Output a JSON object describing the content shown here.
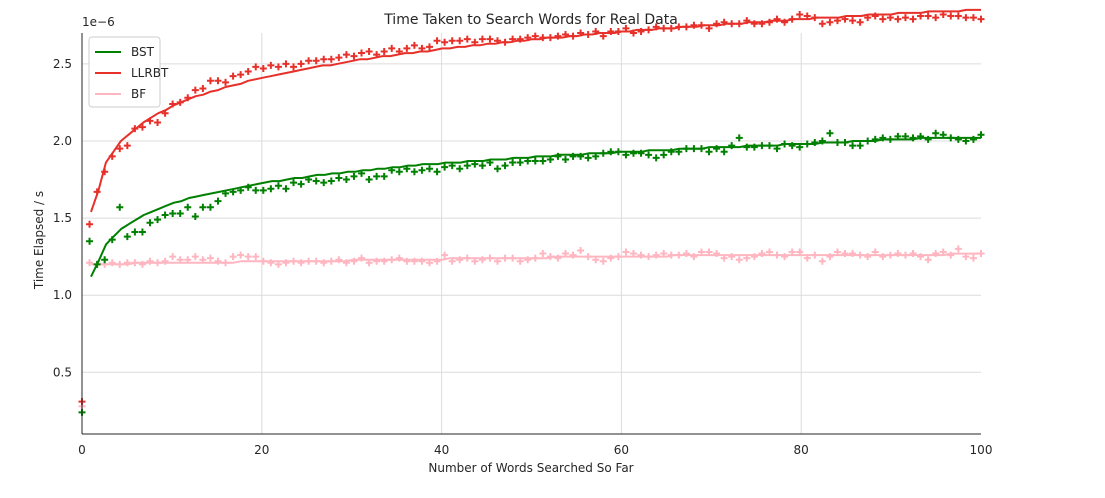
{
  "chart_data": {
    "type": "scatter",
    "title": "Time Taken to Search Words for Real Data",
    "xlabel": "Number of Words Searched So Far",
    "ylabel": "Time Elapsed / s",
    "y_multiplier": "1e−6",
    "xlim": [
      0,
      100
    ],
    "ylim": [
      0.1,
      2.7
    ],
    "x_ticks": [
      0,
      20,
      40,
      60,
      80,
      100
    ],
    "x_tick_labels": [
      "0",
      "20",
      "40",
      "60",
      "80",
      "100"
    ],
    "y_ticks": [
      0.5,
      1.0,
      1.5,
      2.0,
      2.5
    ],
    "y_tick_labels": [
      "0.5",
      "1.0",
      "1.5",
      "2.0",
      "2.5"
    ],
    "grid": true,
    "legend_position": "top-left",
    "series": [
      {
        "name": "BST",
        "color": "#008000",
        "markers": [
          0.24,
          1.35,
          1.2,
          1.23,
          1.36,
          1.57,
          1.38,
          1.41,
          1.41,
          1.47,
          1.49,
          1.52,
          1.53,
          1.53,
          1.57,
          1.51,
          1.57,
          1.57,
          1.61,
          1.66,
          1.67,
          1.68,
          1.7,
          1.68,
          1.68,
          1.69,
          1.71,
          1.69,
          1.73,
          1.72,
          1.75,
          1.74,
          1.73,
          1.74,
          1.76,
          1.75,
          1.77,
          1.79,
          1.75,
          1.77,
          1.77,
          1.81,
          1.8,
          1.82,
          1.8,
          1.81,
          1.82,
          1.8,
          1.83,
          1.84,
          1.82,
          1.84,
          1.85,
          1.84,
          1.86,
          1.82,
          1.84,
          1.86,
          1.86,
          1.87,
          1.87,
          1.87,
          1.88,
          1.9,
          1.88,
          1.9,
          1.9,
          1.89,
          1.9,
          1.92,
          1.93,
          1.93,
          1.91,
          1.92,
          1.92,
          1.91,
          1.89,
          1.91,
          1.93,
          1.93,
          1.95,
          1.95,
          1.95,
          1.93,
          1.95,
          1.93,
          1.97,
          2.02,
          1.96,
          1.96,
          1.97,
          1.97,
          1.95,
          1.98,
          1.97,
          1.96,
          1.98,
          1.99,
          2.0,
          2.05,
          1.99,
          1.99,
          1.97,
          1.97,
          2.0,
          2.01,
          2.02,
          2.01,
          2.03,
          2.03,
          2.02,
          2.03,
          2.01,
          2.05,
          2.04,
          2.02,
          2.01,
          2.0,
          2.01,
          2.04
        ],
        "fit": [
          1.12,
          1.22,
          1.33,
          1.38,
          1.43,
          1.46,
          1.49,
          1.52,
          1.54,
          1.56,
          1.58,
          1.6,
          1.61,
          1.63,
          1.64,
          1.65,
          1.66,
          1.67,
          1.68,
          1.69,
          1.7,
          1.71,
          1.72,
          1.73,
          1.74,
          1.74,
          1.75,
          1.76,
          1.76,
          1.77,
          1.78,
          1.78,
          1.79,
          1.79,
          1.8,
          1.8,
          1.81,
          1.81,
          1.82,
          1.82,
          1.83,
          1.83,
          1.84,
          1.84,
          1.85,
          1.85,
          1.85,
          1.86,
          1.86,
          1.86,
          1.87,
          1.87,
          1.87,
          1.88,
          1.88,
          1.88,
          1.89,
          1.89,
          1.89,
          1.9,
          1.9,
          1.9,
          1.91,
          1.91,
          1.91,
          1.91,
          1.92,
          1.92,
          1.92,
          1.92,
          1.93,
          1.93,
          1.93,
          1.93,
          1.94,
          1.94,
          1.94,
          1.94,
          1.95,
          1.95,
          1.95,
          1.95,
          1.96,
          1.96,
          1.96,
          1.96,
          1.96,
          1.97,
          1.97,
          1.97,
          1.97,
          1.97,
          1.98,
          1.98,
          1.98,
          1.98,
          1.98,
          1.99,
          1.99,
          1.99,
          1.99,
          2.0,
          2.0,
          2.0,
          2.0,
          2.01,
          2.01,
          2.01,
          2.01,
          2.01,
          2.02,
          2.02,
          2.02,
          2.02,
          2.02,
          2.02,
          2.02,
          2.02,
          2.02
        ]
      },
      {
        "name": "LLRBT",
        "color": "#e8302a",
        "markers": [
          0.31,
          1.46,
          1.67,
          1.8,
          1.9,
          1.95,
          1.97,
          2.08,
          2.09,
          2.13,
          2.12,
          2.18,
          2.24,
          2.25,
          2.28,
          2.33,
          2.34,
          2.39,
          2.39,
          2.38,
          2.42,
          2.43,
          2.45,
          2.48,
          2.47,
          2.49,
          2.48,
          2.5,
          2.48,
          2.5,
          2.52,
          2.52,
          2.53,
          2.53,
          2.54,
          2.56,
          2.55,
          2.57,
          2.58,
          2.56,
          2.58,
          2.6,
          2.58,
          2.6,
          2.62,
          2.6,
          2.61,
          2.65,
          2.64,
          2.65,
          2.65,
          2.66,
          2.64,
          2.66,
          2.66,
          2.65,
          2.64,
          2.66,
          2.66,
          2.67,
          2.68,
          2.67,
          2.67,
          2.68,
          2.69,
          2.68,
          2.7,
          2.69,
          2.71,
          2.68,
          2.71,
          2.71,
          2.73,
          2.7,
          2.71,
          2.72,
          2.74,
          2.73,
          2.73,
          2.74,
          2.74,
          2.75,
          2.75,
          2.73,
          2.76,
          2.77,
          2.76,
          2.76,
          2.78,
          2.76,
          2.76,
          2.77,
          2.79,
          2.77,
          2.79,
          2.82,
          2.81,
          2.8,
          2.76,
          2.77,
          2.78,
          2.79,
          2.78,
          2.77,
          2.8,
          2.81,
          2.79,
          2.8,
          2.79,
          2.8,
          2.79,
          2.81,
          2.81,
          2.8,
          2.82,
          2.81,
          2.81,
          2.8,
          2.8,
          2.79
        ],
        "fit": [
          1.54,
          1.68,
          1.86,
          1.93,
          2.0,
          2.04,
          2.08,
          2.12,
          2.15,
          2.18,
          2.2,
          2.23,
          2.25,
          2.27,
          2.29,
          2.3,
          2.32,
          2.33,
          2.35,
          2.36,
          2.37,
          2.39,
          2.4,
          2.41,
          2.42,
          2.43,
          2.44,
          2.45,
          2.46,
          2.47,
          2.48,
          2.49,
          2.49,
          2.5,
          2.51,
          2.52,
          2.53,
          2.53,
          2.54,
          2.55,
          2.55,
          2.56,
          2.57,
          2.57,
          2.58,
          2.58,
          2.59,
          2.6,
          2.6,
          2.61,
          2.61,
          2.62,
          2.62,
          2.63,
          2.63,
          2.64,
          2.64,
          2.65,
          2.65,
          2.66,
          2.66,
          2.67,
          2.67,
          2.67,
          2.68,
          2.68,
          2.69,
          2.69,
          2.7,
          2.7,
          2.7,
          2.71,
          2.71,
          2.72,
          2.72,
          2.72,
          2.73,
          2.73,
          2.73,
          2.74,
          2.74,
          2.74,
          2.75,
          2.75,
          2.75,
          2.76,
          2.76,
          2.76,
          2.77,
          2.77,
          2.77,
          2.78,
          2.78,
          2.78,
          2.79,
          2.79,
          2.79,
          2.8,
          2.8,
          2.8,
          2.8,
          2.81,
          2.81,
          2.81,
          2.82,
          2.82,
          2.82,
          2.82,
          2.83,
          2.83,
          2.83,
          2.83,
          2.84,
          2.84,
          2.84,
          2.84,
          2.84,
          2.85,
          2.85,
          2.85
        ]
      },
      {
        "name": "BF",
        "color": "#ffb6c1",
        "markers": [
          0.28,
          1.21,
          1.2,
          1.2,
          1.21,
          1.2,
          1.21,
          1.21,
          1.2,
          1.22,
          1.21,
          1.22,
          1.25,
          1.23,
          1.23,
          1.25,
          1.23,
          1.24,
          1.22,
          1.21,
          1.25,
          1.26,
          1.25,
          1.25,
          1.22,
          1.21,
          1.2,
          1.21,
          1.22,
          1.21,
          1.22,
          1.22,
          1.21,
          1.22,
          1.23,
          1.21,
          1.22,
          1.24,
          1.21,
          1.22,
          1.22,
          1.23,
          1.24,
          1.22,
          1.22,
          1.22,
          1.21,
          1.22,
          1.26,
          1.22,
          1.23,
          1.24,
          1.22,
          1.23,
          1.24,
          1.22,
          1.24,
          1.24,
          1.22,
          1.23,
          1.24,
          1.27,
          1.25,
          1.24,
          1.27,
          1.26,
          1.29,
          1.25,
          1.23,
          1.22,
          1.24,
          1.25,
          1.28,
          1.27,
          1.26,
          1.25,
          1.26,
          1.27,
          1.26,
          1.26,
          1.27,
          1.25,
          1.28,
          1.28,
          1.27,
          1.24,
          1.25,
          1.23,
          1.24,
          1.25,
          1.27,
          1.28,
          1.26,
          1.25,
          1.28,
          1.28,
          1.24,
          1.26,
          1.22,
          1.25,
          1.28,
          1.27,
          1.27,
          1.26,
          1.25,
          1.28,
          1.25,
          1.26,
          1.27,
          1.26,
          1.27,
          1.25,
          1.23,
          1.27,
          1.28,
          1.26,
          1.3,
          1.25,
          1.24,
          1.27
        ],
        "fit": [
          1.2,
          1.2,
          1.2,
          1.2,
          1.2,
          1.2,
          1.21,
          1.21,
          1.21,
          1.21,
          1.21,
          1.21,
          1.21,
          1.21,
          1.21,
          1.21,
          1.21,
          1.21,
          1.21,
          1.21,
          1.22,
          1.22,
          1.22,
          1.22,
          1.22,
          1.22,
          1.22,
          1.22,
          1.22,
          1.22,
          1.22,
          1.22,
          1.22,
          1.22,
          1.22,
          1.23,
          1.23,
          1.23,
          1.23,
          1.23,
          1.23,
          1.23,
          1.23,
          1.23,
          1.23,
          1.23,
          1.23,
          1.23,
          1.24,
          1.24,
          1.24,
          1.24,
          1.24,
          1.24,
          1.24,
          1.24,
          1.24,
          1.24,
          1.24,
          1.24,
          1.24,
          1.24,
          1.25,
          1.25,
          1.25,
          1.25,
          1.25,
          1.25,
          1.25,
          1.25,
          1.25,
          1.25,
          1.25,
          1.25,
          1.25,
          1.25,
          1.25,
          1.25,
          1.26,
          1.26,
          1.26,
          1.26,
          1.26,
          1.26,
          1.26,
          1.26,
          1.26,
          1.26,
          1.26,
          1.26,
          1.26,
          1.26,
          1.26,
          1.26,
          1.26,
          1.26,
          1.26,
          1.26,
          1.26,
          1.26,
          1.26,
          1.26,
          1.26,
          1.26,
          1.26,
          1.26,
          1.26,
          1.26,
          1.26,
          1.26,
          1.26,
          1.26,
          1.26,
          1.26,
          1.26,
          1.27,
          1.27,
          1.27,
          1.27,
          1.27
        ]
      }
    ]
  }
}
